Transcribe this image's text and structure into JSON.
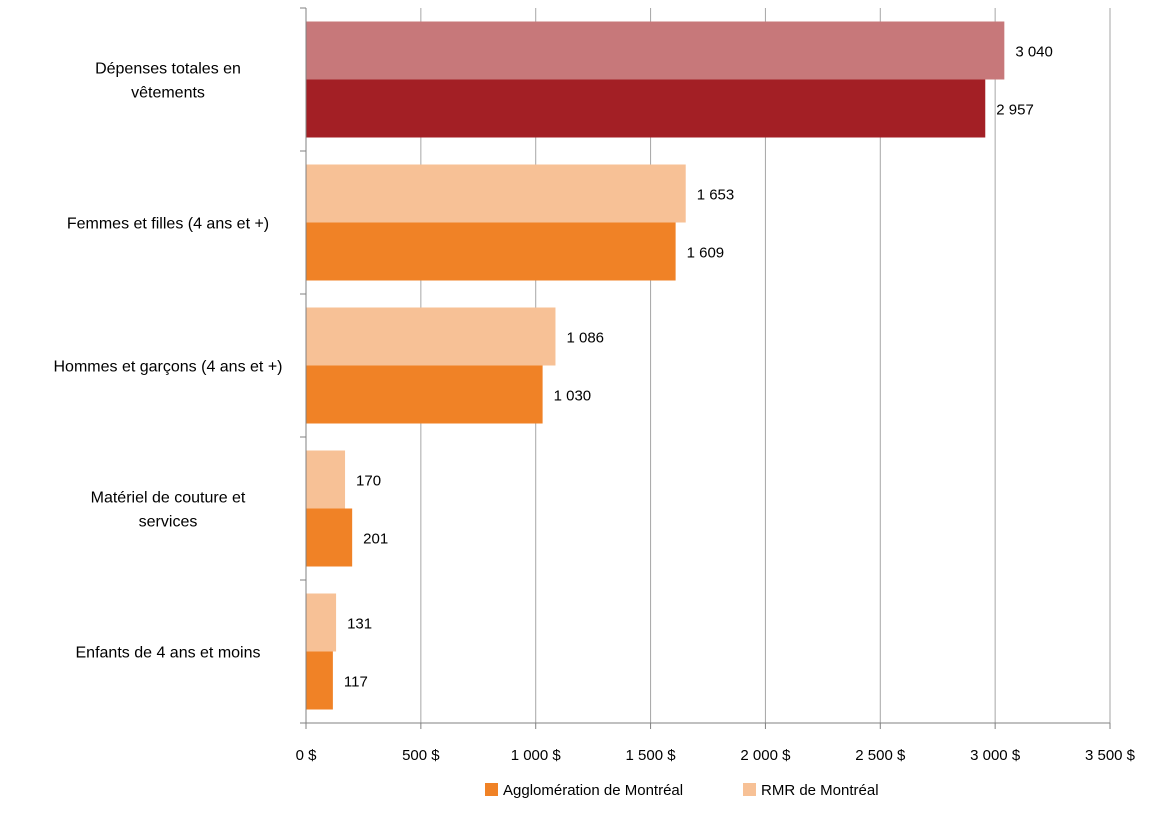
{
  "chart_data": {
    "type": "bar",
    "orientation": "horizontal",
    "title": "",
    "xlabel": "",
    "ylabel": "",
    "xlim": [
      0,
      3500
    ],
    "x_ticks": [
      0,
      500,
      1000,
      1500,
      2000,
      2500,
      3000,
      3500
    ],
    "x_tick_labels": [
      "0 $",
      "500 $",
      "1 000 $",
      "1 500 $",
      "2 000 $",
      "2 500 $",
      "3 000 $",
      "3 500 $"
    ],
    "grid": "vertical",
    "legend_position": "bottom",
    "categories": [
      [
        "Dépenses totales en",
        "vêtements"
      ],
      [
        "Femmes et filles (4 ans et +)"
      ],
      [
        "Hommes et garçons (4 ans et +)"
      ],
      [
        "Matériel de couture et",
        "services"
      ],
      [
        "Enfants de 4 ans et moins"
      ]
    ],
    "series": [
      {
        "name": "RMR de Montréal",
        "values": [
          3040,
          1653,
          1086,
          170,
          131
        ],
        "labels": [
          "3 040",
          "1 653",
          "1 086",
          "170",
          "131"
        ],
        "color": "#f7c196",
        "highlight_color": "#c7787a"
      },
      {
        "name": "Agglomération de Montréal",
        "values": [
          2957,
          1609,
          1030,
          201,
          117
        ],
        "labels": [
          "2 957",
          "1 609",
          "1 030",
          "201",
          "117"
        ],
        "color": "#f08226",
        "highlight_color": "#a31f25"
      }
    ],
    "highlight_category_index": 0,
    "legend_order": [
      "Agglomération de Montréal",
      "RMR de Montréal"
    ]
  }
}
